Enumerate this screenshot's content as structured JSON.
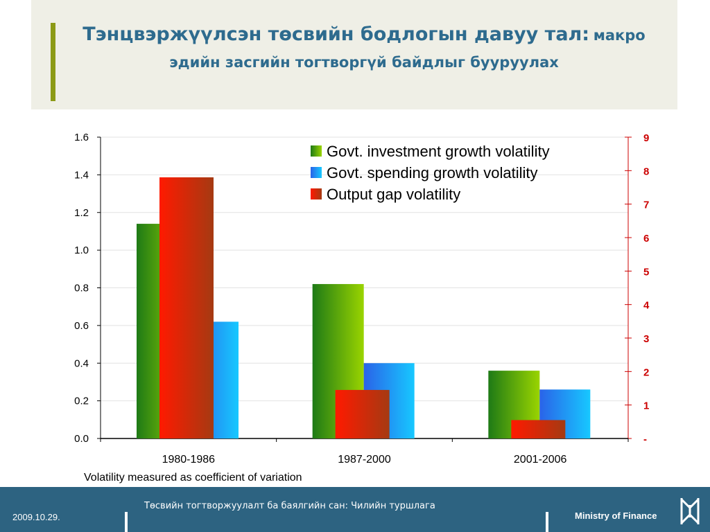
{
  "header": {
    "title_main": "Тэнцвэржүүлсэн төсвийн бодлогын давуу тал:",
    "title_sub_a": "макро",
    "title_line2": "эдийн засгийн тогтворгүй байдлыг бууруулах"
  },
  "chart_data": {
    "type": "bar",
    "categories": [
      "1980-1986",
      "1987-2000",
      "2001-2006"
    ],
    "series": [
      {
        "name": "Govt. investment growth volatility",
        "axis": "left",
        "color": "#5cb800",
        "values": [
          1.14,
          0.82,
          0.36
        ]
      },
      {
        "name": "Govt. spending growth volatility",
        "axis": "left",
        "color": "#2b8fff",
        "values": [
          0.62,
          0.4,
          0.26
        ]
      },
      {
        "name": "Output gap volatility",
        "axis": "right",
        "color": "#ee1b00",
        "values": [
          7.8,
          1.45,
          0.55
        ]
      }
    ],
    "y_left": {
      "min": 0,
      "max": 1.6,
      "ticks": [
        "0.0",
        "0.2",
        "0.4",
        "0.6",
        "0.8",
        "1.0",
        "1.2",
        "1.4",
        "1.6"
      ]
    },
    "y_right": {
      "min": 0,
      "max": 9,
      "ticks": [
        "-",
        "1",
        "2",
        "3",
        "4",
        "5",
        "6",
        "7",
        "8",
        "9"
      ],
      "color": "#cc0000"
    },
    "legend_position": "top-right",
    "grid": true,
    "note": "Volatility measured as coefficient of variation"
  },
  "footer": {
    "date": "2009.10.29.",
    "center_text": "Төсвийн тогтворжуулалт ба баялгийн сан: Чилийн туршлага",
    "ministry": "Ministry of Finance"
  }
}
